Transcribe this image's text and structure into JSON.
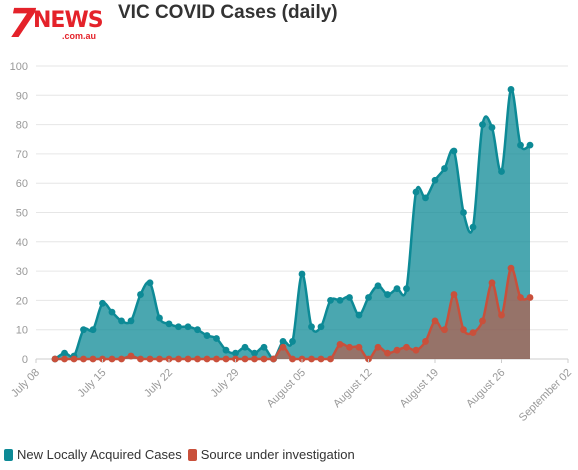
{
  "brand": {
    "logo_text": "7NEWS",
    "logo_domain": ".com.au",
    "color": "#e4222a"
  },
  "chart_data": {
    "type": "area",
    "title": "VIC COVID Cases (daily)",
    "xlabel": "",
    "ylabel": "",
    "ylim": [
      0,
      100
    ],
    "yticks": [
      0,
      10,
      20,
      30,
      40,
      50,
      60,
      70,
      80,
      90,
      100
    ],
    "xlim": [
      "2020-07-08",
      "2020-09-02"
    ],
    "xtick_labels": [
      "July 08",
      "July 15",
      "July 22",
      "July 29",
      "August 05",
      "August 12",
      "August 19",
      "August 26",
      "September 02"
    ],
    "grid": true,
    "legend_position": "bottom-left",
    "x": [
      "2020-07-10",
      "2020-07-11",
      "2020-07-12",
      "2020-07-13",
      "2020-07-14",
      "2020-07-15",
      "2020-07-16",
      "2020-07-17",
      "2020-07-18",
      "2020-07-19",
      "2020-07-20",
      "2020-07-21",
      "2020-07-22",
      "2020-07-23",
      "2020-07-24",
      "2020-07-25",
      "2020-07-26",
      "2020-07-27",
      "2020-07-28",
      "2020-07-29",
      "2020-07-30",
      "2020-07-31",
      "2020-08-01",
      "2020-08-02",
      "2020-08-03",
      "2020-08-04",
      "2020-08-05",
      "2020-08-06",
      "2020-08-07",
      "2020-08-08",
      "2020-08-09",
      "2020-08-10",
      "2020-08-11",
      "2020-08-12",
      "2020-08-13",
      "2020-08-14",
      "2020-08-15",
      "2020-08-16",
      "2020-08-17",
      "2020-08-18",
      "2020-08-19",
      "2020-08-20",
      "2020-08-21",
      "2020-08-22",
      "2020-08-23",
      "2020-08-24",
      "2020-08-25",
      "2020-08-26",
      "2020-08-27",
      "2020-08-28",
      "2020-08-29"
    ],
    "series": [
      {
        "name": "New Locally Acquired Cases",
        "color": "#0d8a96",
        "values": [
          0,
          2,
          1,
          10,
          10,
          19,
          16,
          13,
          13,
          22,
          26,
          14,
          12,
          11,
          11,
          10,
          8,
          7,
          3,
          2,
          4,
          2,
          4,
          0,
          6,
          6,
          29,
          11,
          11,
          20,
          20,
          21,
          15,
          21,
          25,
          22,
          24,
          24,
          57,
          55,
          61,
          65,
          71,
          50,
          45,
          80,
          79,
          64,
          92,
          73,
          73
        ]
      },
      {
        "name": "Source under investigation",
        "color": "#c9503b",
        "values": [
          0,
          0,
          0,
          0,
          0,
          0,
          0,
          0,
          1,
          0,
          0,
          0,
          0,
          0,
          0,
          0,
          0,
          0,
          0,
          0,
          0,
          0,
          0,
          0,
          4,
          0,
          0,
          0,
          0,
          0,
          5,
          4,
          4,
          0,
          4,
          2,
          3,
          4,
          3,
          6,
          13,
          10,
          22,
          10,
          9,
          13,
          26,
          15,
          31,
          21,
          21
        ]
      }
    ]
  }
}
